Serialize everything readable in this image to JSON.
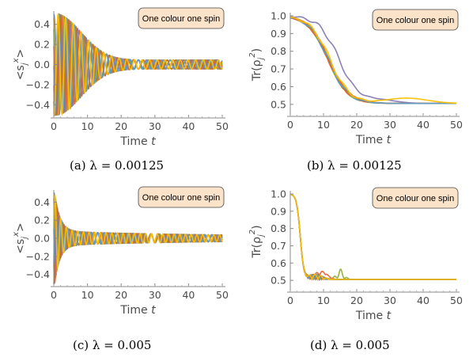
{
  "chart_data": [
    {
      "type": "line",
      "caption": "(a) λ = 0.00125",
      "xlabel": "Time t",
      "ylabel": "<s_j^x>",
      "xlim": [
        0,
        50
      ],
      "ylim": [
        -0.5,
        0.5
      ],
      "xticks": [
        "0",
        "10",
        "20",
        "30",
        "40",
        "50"
      ],
      "yticks": [
        "-0.4",
        "-0.2",
        "0.0",
        "0.2",
        "0.4"
      ],
      "legend": {
        "text": "One colour one spin",
        "position": "top-right"
      },
      "series_colors": [
        "#5e81b5",
        "#e19c24",
        "#8fb032",
        "#eb6235",
        "#8778b3",
        "#c56e1a",
        "#5d9ec7",
        "#ffbf00"
      ],
      "description": "Eight damped oscillations (one per spin), amplitude ~0.5 decaying to ~0.05 by t≈20 then small oscillations around 0"
    },
    {
      "type": "line",
      "caption": "(b) λ = 0.00125",
      "xlabel": "Time t",
      "ylabel": "Tr(ρ_j^2)",
      "xlim": [
        0,
        50
      ],
      "ylim": [
        0.45,
        1.0
      ],
      "xticks": [
        "0",
        "10",
        "20",
        "30",
        "40",
        "50"
      ],
      "yticks": [
        "0.5",
        "0.6",
        "0.7",
        "0.8",
        "0.9",
        "1.0"
      ],
      "legend": {
        "text": "One colour one spin",
        "position": "top-right"
      },
      "series_colors": [
        "#5e81b5",
        "#e19c24",
        "#8fb032",
        "#eb6235",
        "#8778b3",
        "#c56e1a",
        "#5d9ec7",
        "#ffbf00"
      ],
      "description": "Purity decays from 1.0 to ~0.5 around t≈20-25, purple curve slightly delayed, yellow slight bump near 0.53 at t≈35"
    },
    {
      "type": "line",
      "caption": "(c) λ = 0.005",
      "xlabel": "Time t",
      "ylabel": "<s_j^x>",
      "xlim": [
        0,
        50
      ],
      "ylim": [
        -0.5,
        0.5
      ],
      "xticks": [
        "0",
        "10",
        "20",
        "30",
        "40",
        "50"
      ],
      "yticks": [
        "-0.4",
        "-0.2",
        "0.0",
        "0.2",
        "0.4"
      ],
      "legend": {
        "text": "One colour one spin",
        "position": "top-right"
      },
      "series_colors": [
        "#5e81b5",
        "#e19c24",
        "#8fb032",
        "#eb6235",
        "#8778b3",
        "#c56e1a",
        "#5d9ec7",
        "#ffbf00"
      ],
      "description": "Fast damped oscillations, amplitude 0.5 dropping to ~0.1 by t≈5, then noisy small oscillations around 0"
    },
    {
      "type": "line",
      "caption": "(d) λ = 0.005",
      "xlabel": "Time t",
      "ylabel": "Tr(ρ_j^2)",
      "xlim": [
        0,
        50
      ],
      "ylim": [
        0.45,
        1.0
      ],
      "xticks": [
        "0",
        "10",
        "20",
        "30",
        "40",
        "50"
      ],
      "yticks": [
        "0.5",
        "0.6",
        "0.7",
        "0.8",
        "0.9",
        "1.0"
      ],
      "legend": {
        "text": "One colour one spin",
        "position": "top-right"
      },
      "series_colors": [
        "#5e81b5",
        "#e19c24",
        "#8fb032",
        "#eb6235",
        "#8778b3",
        "#c56e1a",
        "#5d9ec7",
        "#ffbf00"
      ],
      "description": "Purity drops rapidly from 1.0 to ~0.5 by t≈5 with small bumps (green to 0.57 near t≈15) settling at ~0.505"
    }
  ]
}
